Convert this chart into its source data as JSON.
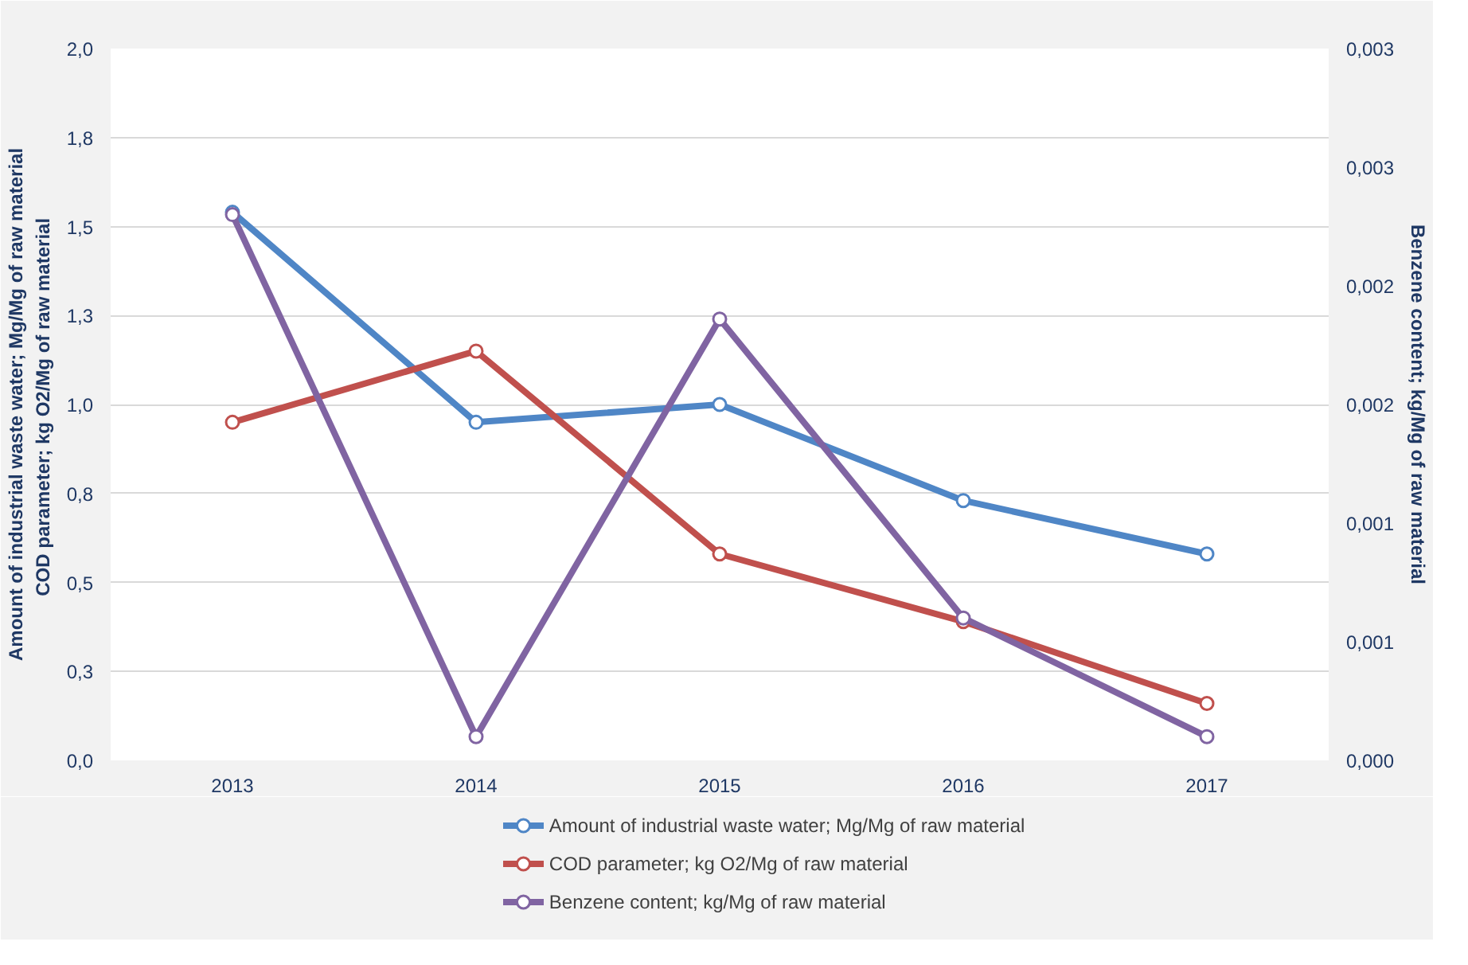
{
  "chart_data": {
    "type": "line",
    "categories": [
      "2013",
      "2014",
      "2015",
      "2016",
      "2017"
    ],
    "ylabel": "Amount of industrial waste water; Mg/Mg of raw material\nCOD parameter;  kg O2/Mg of raw material",
    "y2label": "Benzene content; kg/Mg of raw material",
    "ylim": [
      0,
      2
    ],
    "yticks": [
      {
        "value": 0,
        "label": "0,0"
      },
      {
        "value": 0.25,
        "label": "0,3"
      },
      {
        "value": 0.5,
        "label": "0,5"
      },
      {
        "value": 0.75,
        "label": "0,8"
      },
      {
        "value": 1,
        "label": "1,0"
      },
      {
        "value": 1.25,
        "label": "1,3"
      },
      {
        "value": 1.5,
        "label": "1,5"
      },
      {
        "value": 1.75,
        "label": "1,8"
      },
      {
        "value": 2,
        "label": "2,0"
      }
    ],
    "y2lim": [
      0,
      0.003
    ],
    "y2ticks": [
      {
        "value": 0,
        "label": "0,000"
      },
      {
        "value": 0.0005,
        "label": "0,001"
      },
      {
        "value": 0.001,
        "label": "0,001"
      },
      {
        "value": 0.0015,
        "label": "0,002"
      },
      {
        "value": 0.002,
        "label": "0,002"
      },
      {
        "value": 0.0025,
        "label": "0,003"
      },
      {
        "value": 0.003,
        "label": "0,003"
      }
    ],
    "grid": "y",
    "legend": "bottom",
    "marker": "circle",
    "line_style": "solid",
    "series": [
      {
        "name": "Amount of industrial waste water; Mg/Mg of raw material",
        "color": "#4f86c6",
        "values": [
          1.54,
          0.95,
          1.0,
          0.73,
          0.58
        ]
      },
      {
        "name": "COD parameter;  kg O2/Mg of raw material",
        "color": "#c0504d",
        "values": [
          0.95,
          1.15,
          0.58,
          0.39,
          0.16
        ]
      },
      {
        "name": "Benzene content; kg/Mg of raw material",
        "color": "#8064a2",
        "axis": "y2",
        "values": [
          0.0023,
          0.0001,
          0.00186,
          0.0006,
          0.0001
        ]
      }
    ]
  }
}
